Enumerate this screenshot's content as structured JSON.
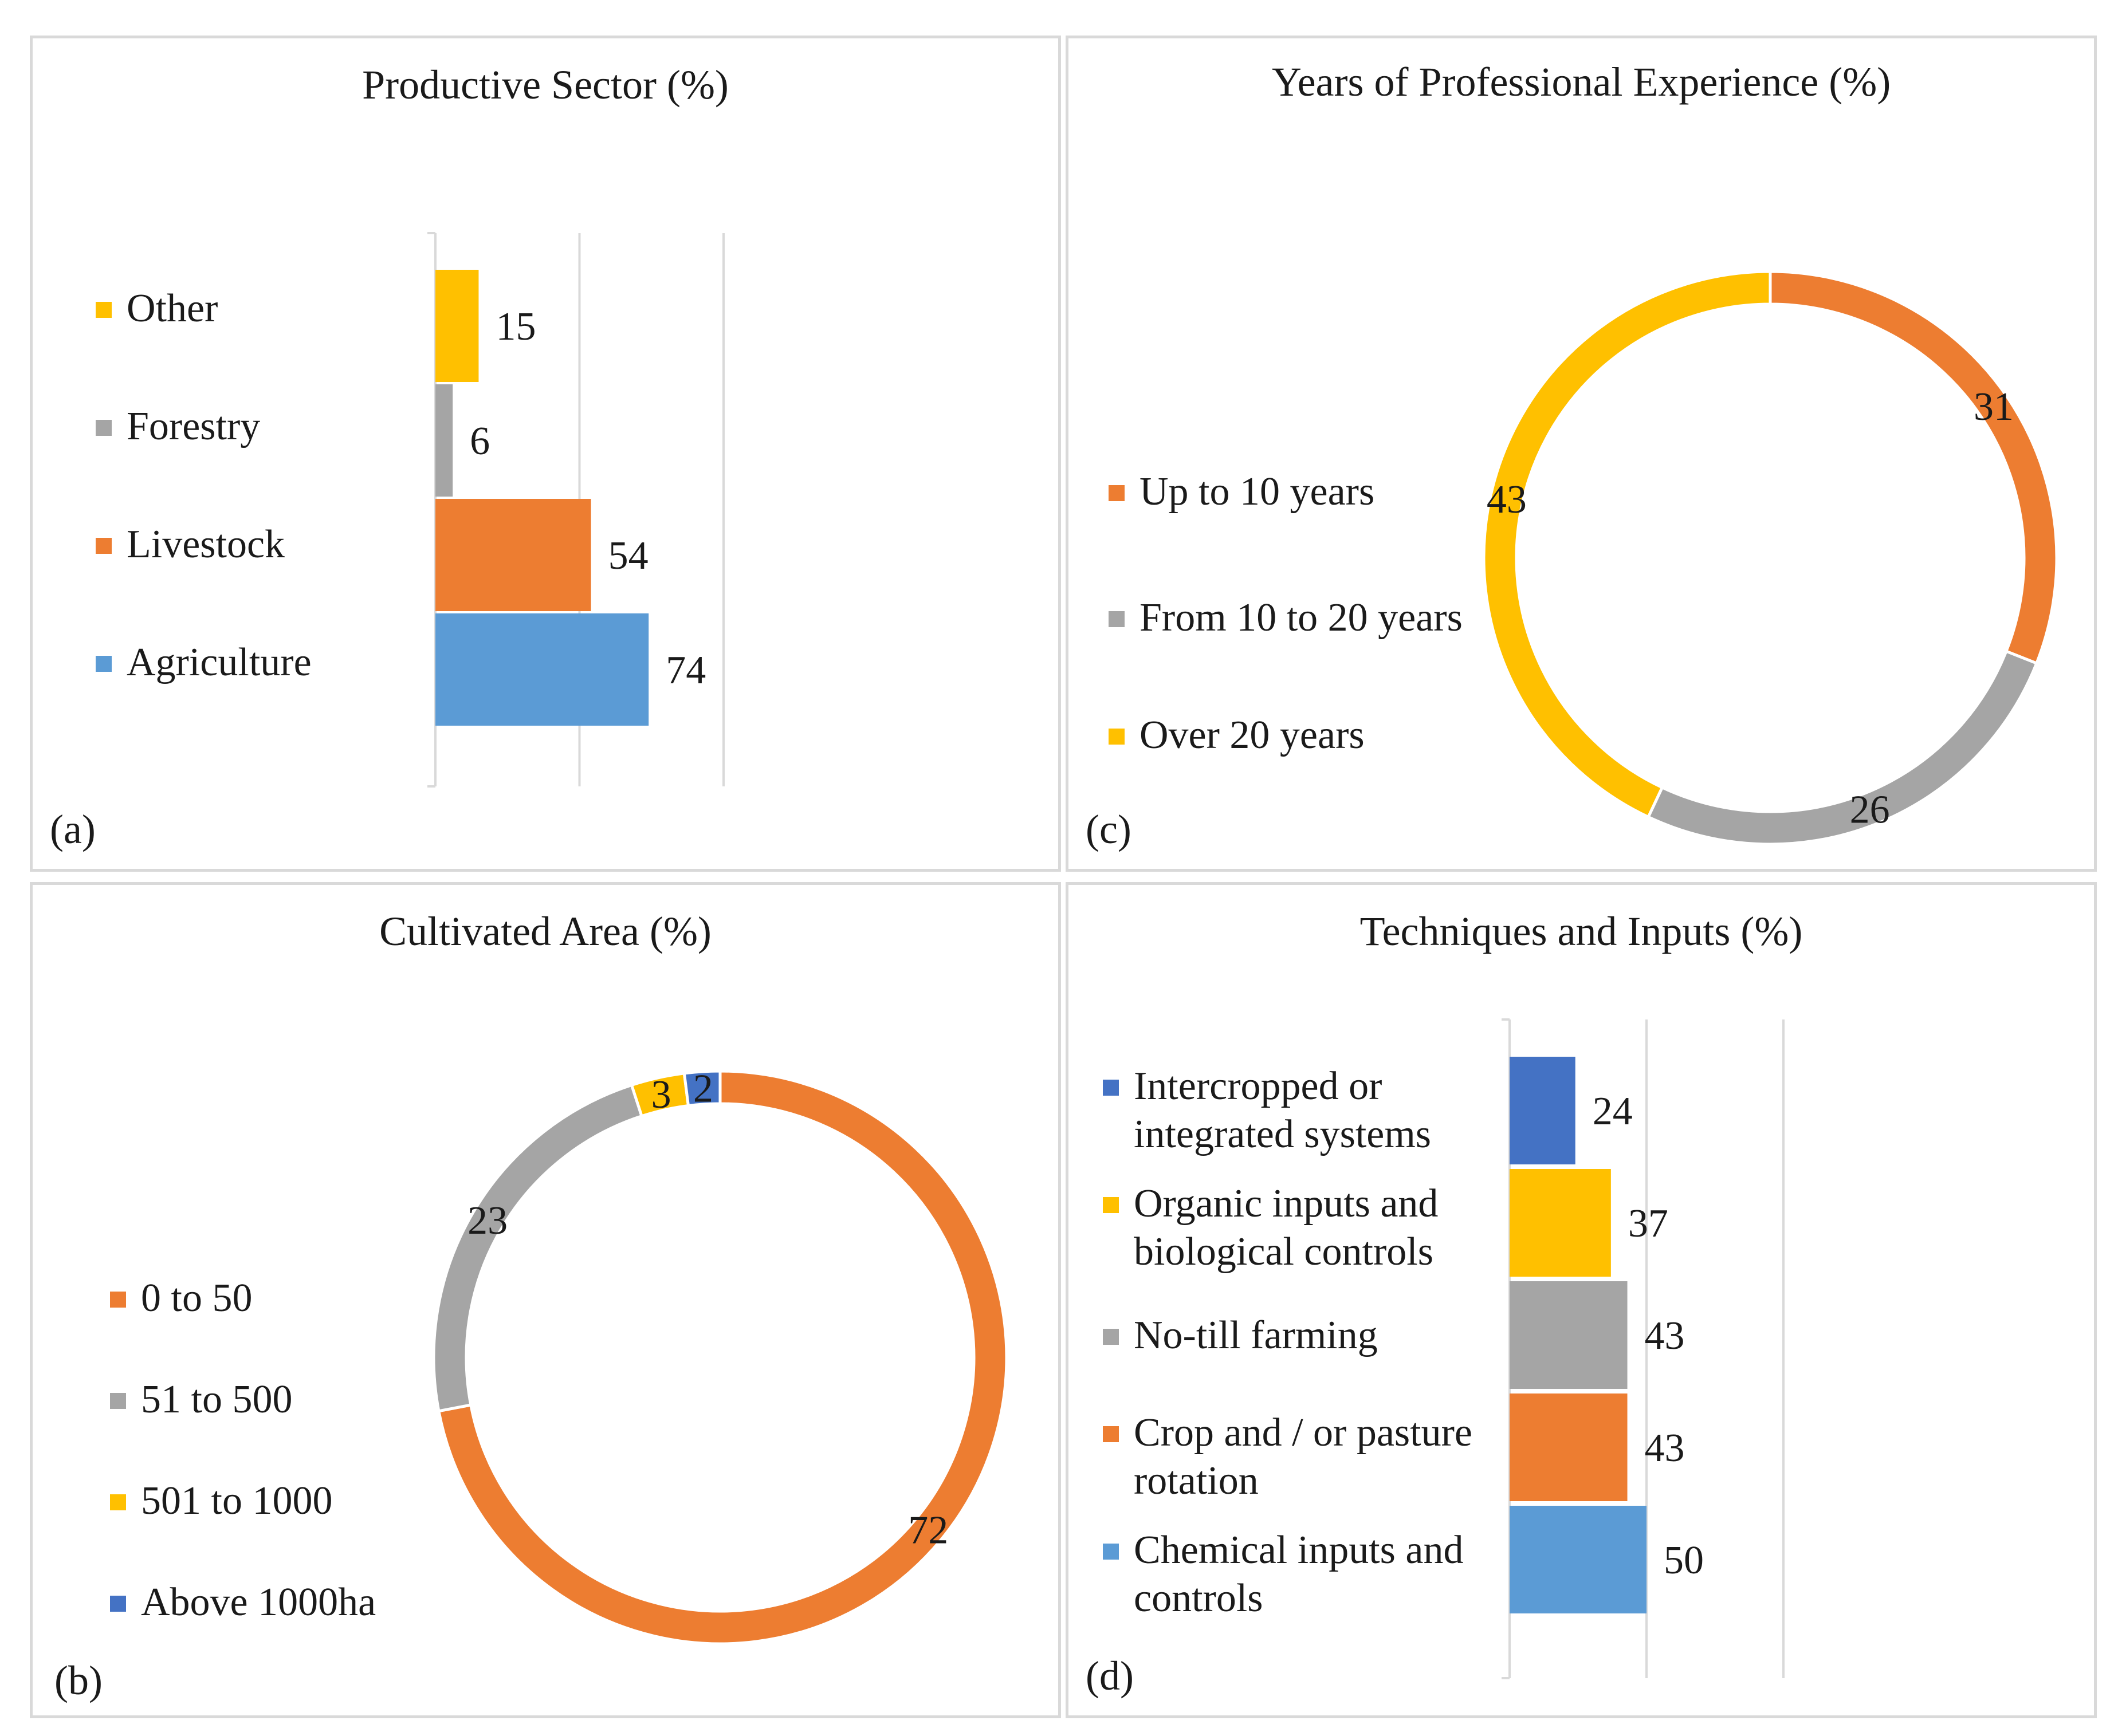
{
  "colors": {
    "blue": "#5b9bd5",
    "orange": "#ed7d31",
    "gray": "#a5a5a5",
    "yellow": "#ffc000",
    "darkblue": "#4472c4",
    "gridline": "#d9d9d9"
  },
  "panel_a": {
    "title": "Productive Sector (%)",
    "letter": "(a)",
    "legend": [
      {
        "label": "Other",
        "color": "#ffc000"
      },
      {
        "label": "Forestry",
        "color": "#a5a5a5"
      },
      {
        "label": "Livestock",
        "color": "#ed7d31"
      },
      {
        "label": "Agriculture",
        "color": "#5b9bd5"
      }
    ]
  },
  "panel_c": {
    "title": "Years of Professional Experience (%)",
    "letter": "(c)",
    "legend": [
      {
        "label": "Up to 10 years",
        "color": "#ed7d31"
      },
      {
        "label": "From 10 to 20 years",
        "color": "#a5a5a5"
      },
      {
        "label": "Over 20 years",
        "color": "#ffc000"
      }
    ]
  },
  "panel_b": {
    "title": "Cultivated Area (%)",
    "letter": "(b)",
    "legend": [
      {
        "label": "0 to 50",
        "color": "#ed7d31"
      },
      {
        "label": "51 to 500",
        "color": "#a5a5a5"
      },
      {
        "label": "501 to 1000",
        "color": "#ffc000"
      },
      {
        "label": "Above 1000ha",
        "color": "#4472c4"
      }
    ]
  },
  "panel_d": {
    "title": "Techniques and Inputs (%)",
    "letter": "(d)",
    "legend": [
      {
        "label": "Intercropped or\nintegrated systems",
        "color": "#4472c4"
      },
      {
        "label": "Organic inputs and\nbiological controls",
        "color": "#ffc000"
      },
      {
        "label": "No-till farming",
        "color": "#a5a5a5"
      },
      {
        "label": "Crop and / or pasture\nrotation",
        "color": "#ed7d31"
      },
      {
        "label": "Chemical inputs and\ncontrols",
        "color": "#5b9bd5"
      }
    ]
  },
  "chart_data": [
    {
      "id": "a",
      "type": "bar",
      "orientation": "horizontal",
      "title": "Productive Sector (%)",
      "categories": [
        "Other",
        "Forestry",
        "Livestock",
        "Agriculture"
      ],
      "values": [
        15,
        6,
        54,
        74
      ],
      "colors": [
        "#ffc000",
        "#a5a5a5",
        "#ed7d31",
        "#5b9bd5"
      ],
      "xlim": [
        0,
        100
      ],
      "grid": true,
      "legend": "left"
    },
    {
      "id": "c",
      "type": "pie",
      "variant": "doughnut",
      "title": "Years of Professional Experience (%)",
      "labels": [
        "Up to 10 years",
        "From 10 to 20 years",
        "Over 20 years"
      ],
      "values": [
        31,
        26,
        43
      ],
      "colors": [
        "#ed7d31",
        "#a5a5a5",
        "#ffc000"
      ],
      "legend": "left"
    },
    {
      "id": "b",
      "type": "pie",
      "variant": "doughnut",
      "title": "Cultivated Area (%)",
      "labels": [
        "0 to 50",
        "51 to 500",
        "501 to 1000",
        "Above 1000ha"
      ],
      "values": [
        72,
        23,
        3,
        2
      ],
      "colors": [
        "#ed7d31",
        "#a5a5a5",
        "#ffc000",
        "#4472c4"
      ],
      "legend": "left"
    },
    {
      "id": "d",
      "type": "bar",
      "orientation": "horizontal",
      "title": "Techniques and Inputs (%)",
      "categories": [
        "Intercropped or integrated systems",
        "Organic inputs and biological controls",
        "No-till farming",
        "Crop and / or pasture rotation",
        "Chemical inputs and controls"
      ],
      "values": [
        24,
        37,
        43,
        43,
        50
      ],
      "colors": [
        "#4472c4",
        "#ffc000",
        "#a5a5a5",
        "#ed7d31",
        "#5b9bd5"
      ],
      "xlim": [
        0,
        100
      ],
      "grid": true,
      "legend": "left"
    }
  ]
}
